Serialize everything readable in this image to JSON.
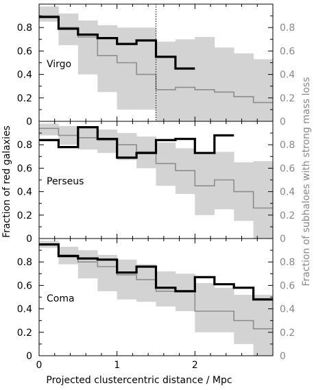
{
  "chart_data": {
    "type": "line",
    "xlabel": "Projected clustercentric distance / Mpc",
    "ylabel_left": "Fraction of red galaxies",
    "ylabel_right": "Fraction of subhaloes with strong mass loss",
    "xlim": [
      0,
      3.0
    ],
    "ylim": [
      0,
      1.0
    ],
    "x_ticks": [
      "0",
      "1",
      "2"
    ],
    "x_tick_values": [
      0,
      1,
      2
    ],
    "y_ticks": [
      "0",
      "0.2",
      "0.4",
      "0.6",
      "0.8"
    ],
    "y_tick_values": [
      0,
      0.2,
      0.4,
      0.6,
      0.8
    ],
    "colors": {
      "observed": "#000000",
      "model": "#8c8c8c",
      "band": "#d3d3d3"
    },
    "panels": [
      {
        "label": "Virgo",
        "vline_x": 1.5,
        "observed": {
          "edges": [
            0,
            0.25,
            0.5,
            0.75,
            1.0,
            1.25,
            1.5,
            1.75,
            2.0
          ],
          "values": [
            0.89,
            0.79,
            0.74,
            0.71,
            0.66,
            0.69,
            0.55,
            0.45
          ]
        },
        "model": {
          "edges": [
            0,
            0.25,
            0.5,
            0.75,
            1.0,
            1.25,
            1.5,
            1.75,
            2.0,
            2.25,
            2.5,
            2.75,
            3.0
          ],
          "values": [
            0.9,
            0.8,
            0.72,
            0.56,
            0.5,
            0.4,
            0.27,
            0.29,
            0.27,
            0.25,
            0.21,
            0.16
          ],
          "lower": [
            0.85,
            0.65,
            0.4,
            0.25,
            0.1,
            0.1,
            0.0,
            0.0,
            0.0,
            0.0,
            0.0,
            0.0
          ],
          "upper": [
            0.98,
            0.92,
            0.86,
            0.82,
            0.8,
            0.8,
            0.68,
            0.7,
            0.72,
            0.63,
            0.58,
            0.53
          ]
        }
      },
      {
        "label": "Perseus",
        "observed": {
          "edges": [
            0,
            0.25,
            0.5,
            0.75,
            1.0,
            1.25,
            1.5,
            1.75,
            2.0,
            2.25,
            2.5
          ],
          "values": [
            0.84,
            0.78,
            0.95,
            0.85,
            0.69,
            0.73,
            0.84,
            0.85,
            0.73,
            0.88
          ]
        },
        "model": {
          "edges": [
            0,
            0.25,
            0.5,
            0.75,
            1.0,
            1.25,
            1.5,
            1.75,
            2.0,
            2.25,
            2.5,
            2.75,
            3.0
          ],
          "values": [
            0.94,
            0.88,
            0.86,
            0.84,
            0.8,
            0.74,
            0.64,
            0.58,
            0.45,
            0.5,
            0.4,
            0.26
          ],
          "lower": [
            0.88,
            0.8,
            0.76,
            0.73,
            0.67,
            0.6,
            0.45,
            0.38,
            0.2,
            0.25,
            0.15,
            0.0
          ],
          "upper": [
            0.98,
            0.96,
            0.95,
            0.93,
            0.9,
            0.87,
            0.82,
            0.77,
            0.72,
            0.74,
            0.65,
            0.66
          ]
        }
      },
      {
        "label": "Coma",
        "observed": {
          "edges": [
            0,
            0.25,
            0.5,
            0.75,
            1.0,
            1.25,
            1.5,
            1.75,
            2.0,
            2.25,
            2.5,
            2.75,
            3.0
          ],
          "values": [
            0.95,
            0.85,
            0.83,
            0.82,
            0.71,
            0.76,
            0.58,
            0.55,
            0.67,
            0.61,
            0.58,
            0.48
          ]
        },
        "model": {
          "edges": [
            0,
            0.25,
            0.5,
            0.75,
            1.0,
            1.25,
            1.5,
            1.75,
            2.0,
            2.25,
            2.5,
            2.75,
            3.0
          ],
          "values": [
            0.95,
            0.86,
            0.8,
            0.76,
            0.69,
            0.65,
            0.55,
            0.55,
            0.38,
            0.38,
            0.3,
            0.23
          ],
          "lower": [
            0.92,
            0.78,
            0.66,
            0.55,
            0.48,
            0.46,
            0.42,
            0.38,
            0.2,
            0.2,
            0.1,
            0.0
          ],
          "upper": [
            0.98,
            0.93,
            0.9,
            0.86,
            0.82,
            0.78,
            0.72,
            0.7,
            0.62,
            0.58,
            0.52,
            0.52
          ]
        }
      }
    ]
  }
}
